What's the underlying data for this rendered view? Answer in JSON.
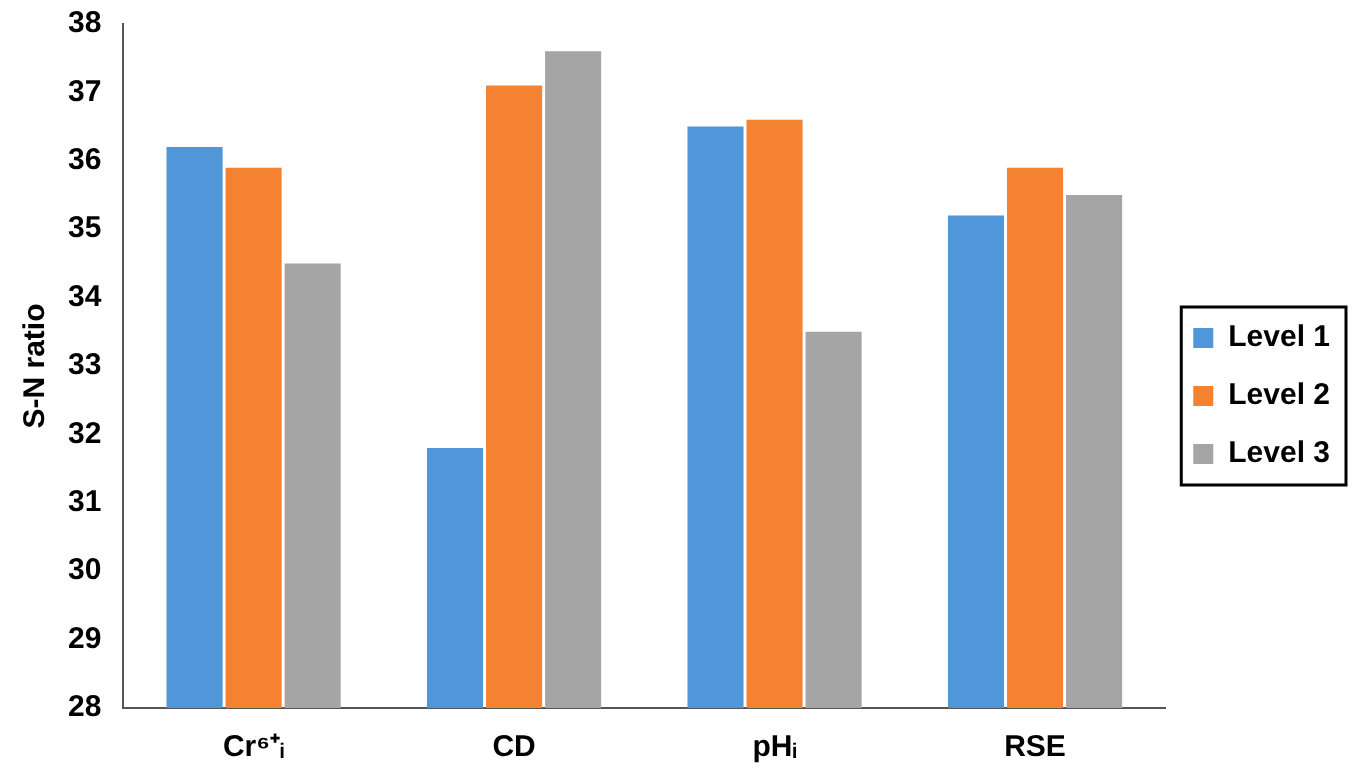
{
  "chart_data": {
    "type": "bar",
    "ylabel": "S-N ratio",
    "categories": [
      "Cr⁶⁺ᵢ",
      "CD",
      "pHᵢ",
      "RSE"
    ],
    "series": [
      {
        "name": "Level 1",
        "color": "#4f97d9",
        "values": [
          36.2,
          31.8,
          36.5,
          35.2
        ]
      },
      {
        "name": "Level 2",
        "color": "#f58231",
        "values": [
          35.9,
          37.1,
          36.6,
          35.9
        ]
      },
      {
        "name": "Level 3",
        "color": "#a5a5a5",
        "values": [
          34.5,
          37.6,
          33.5,
          35.5
        ]
      }
    ],
    "ylim": [
      28,
      38
    ],
    "yticks": [
      28,
      29,
      30,
      31,
      32,
      33,
      34,
      35,
      36,
      37,
      38
    ],
    "grid": false,
    "legend": "right"
  }
}
